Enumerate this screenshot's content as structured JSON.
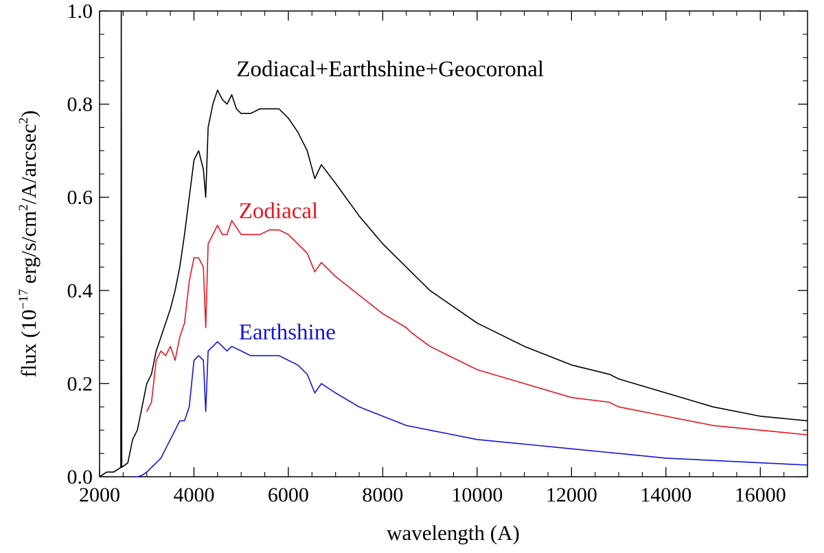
{
  "chart_data": {
    "type": "line",
    "title": "",
    "xlabel": "wavelength (A)",
    "ylabel": {
      "prefix": "flux (10",
      "exponent": "−17",
      "mid": " erg/s/cm",
      "cm_exponent": "2",
      "end": "/A/arcsec",
      "arcsec_exponent": "2",
      "close": ")"
    },
    "xlim": [
      2000,
      17000
    ],
    "ylim": [
      0.0,
      1.0
    ],
    "x_ticks": [
      2000,
      4000,
      6000,
      8000,
      10000,
      12000,
      14000,
      16000
    ],
    "x_tick_labels": [
      "2000",
      "4000",
      "6000",
      "8000",
      "10000",
      "12000",
      "14000",
      "16000"
    ],
    "y_ticks": [
      0.0,
      0.2,
      0.4,
      0.6,
      0.8,
      1.0
    ],
    "y_tick_labels": [
      "0.0",
      "0.2",
      "0.4",
      "0.6",
      "0.8",
      "1.0"
    ],
    "series": [
      {
        "name": "Zodiacal+Earthshine+Geocoronal",
        "label": "Zodiacal+Earthshine+Geocoronal",
        "color": "#000000",
        "x": [
          2000,
          2150,
          2300,
          2450,
          2460,
          2470,
          2600,
          2700,
          2800,
          2900,
          3000,
          3100,
          3200,
          3300,
          3400,
          3500,
          3600,
          3700,
          3800,
          3900,
          4000,
          4100,
          4200,
          4250,
          4300,
          4400,
          4500,
          4600,
          4700,
          4800,
          4900,
          5000,
          5200,
          5400,
          5600,
          5800,
          6000,
          6200,
          6400,
          6560,
          6700,
          7000,
          7500,
          8000,
          8500,
          8600,
          9000,
          10000,
          11000,
          12000,
          12800,
          13000,
          14000,
          15000,
          16000,
          17000
        ],
        "y": [
          0.0,
          0.01,
          0.01,
          0.02,
          1.0,
          0.02,
          0.03,
          0.08,
          0.1,
          0.15,
          0.2,
          0.22,
          0.27,
          0.3,
          0.33,
          0.36,
          0.4,
          0.45,
          0.52,
          0.6,
          0.68,
          0.7,
          0.66,
          0.6,
          0.75,
          0.8,
          0.83,
          0.81,
          0.8,
          0.82,
          0.79,
          0.78,
          0.78,
          0.79,
          0.79,
          0.79,
          0.77,
          0.74,
          0.7,
          0.64,
          0.67,
          0.63,
          0.56,
          0.5,
          0.45,
          0.44,
          0.4,
          0.33,
          0.28,
          0.24,
          0.22,
          0.21,
          0.18,
          0.15,
          0.13,
          0.12
        ]
      },
      {
        "name": "Zodiacal",
        "label": "Zodiacal",
        "color": "#e8141e",
        "x": [
          3000,
          3100,
          3200,
          3300,
          3400,
          3500,
          3600,
          3700,
          3800,
          3900,
          4000,
          4100,
          4200,
          4250,
          4300,
          4400,
          4500,
          4600,
          4700,
          4800,
          5000,
          5200,
          5400,
          5600,
          5800,
          6000,
          6200,
          6400,
          6560,
          6700,
          7000,
          7500,
          8000,
          8500,
          8600,
          9000,
          10000,
          11000,
          12000,
          12800,
          13000,
          14000,
          15000,
          16000,
          17000
        ],
        "y": [
          0.14,
          0.16,
          0.25,
          0.27,
          0.26,
          0.28,
          0.25,
          0.3,
          0.33,
          0.42,
          0.47,
          0.47,
          0.45,
          0.32,
          0.5,
          0.52,
          0.54,
          0.52,
          0.52,
          0.55,
          0.52,
          0.52,
          0.52,
          0.53,
          0.53,
          0.52,
          0.5,
          0.48,
          0.44,
          0.46,
          0.43,
          0.39,
          0.35,
          0.32,
          0.31,
          0.28,
          0.23,
          0.2,
          0.17,
          0.16,
          0.15,
          0.13,
          0.11,
          0.1,
          0.09
        ]
      },
      {
        "name": "Earthshine",
        "label": "Earthshine",
        "color": "#1414dc",
        "x": [
          2700,
          2800,
          2900,
          3000,
          3100,
          3200,
          3300,
          3400,
          3500,
          3600,
          3700,
          3800,
          3900,
          4000,
          4100,
          4200,
          4250,
          4300,
          4400,
          4500,
          4600,
          4700,
          4800,
          5000,
          5200,
          5400,
          5600,
          5800,
          6000,
          6200,
          6400,
          6560,
          6700,
          7000,
          7500,
          8000,
          8500,
          9000,
          10000,
          11000,
          12000,
          13000,
          14000,
          15000,
          16000,
          17000
        ],
        "y": [
          0.0,
          0.0,
          0.003,
          0.01,
          0.02,
          0.03,
          0.04,
          0.06,
          0.08,
          0.1,
          0.12,
          0.12,
          0.15,
          0.25,
          0.26,
          0.25,
          0.14,
          0.27,
          0.28,
          0.29,
          0.28,
          0.27,
          0.28,
          0.27,
          0.26,
          0.26,
          0.26,
          0.26,
          0.25,
          0.24,
          0.22,
          0.18,
          0.2,
          0.18,
          0.15,
          0.13,
          0.11,
          0.1,
          0.08,
          0.07,
          0.06,
          0.05,
          0.04,
          0.035,
          0.03,
          0.025
        ]
      }
    ],
    "annotations": [
      {
        "series": "Zodiacal+Earthshine+Geocoronal",
        "text": "Zodiacal+Earthshine+Geocoronal",
        "x": 4900,
        "y": 0.86
      },
      {
        "series": "Zodiacal",
        "text": "Zodiacal",
        "x": 4950,
        "y": 0.555
      },
      {
        "series": "Earthshine",
        "text": "Earthshine",
        "x": 4950,
        "y": 0.295
      }
    ],
    "grid": false
  }
}
